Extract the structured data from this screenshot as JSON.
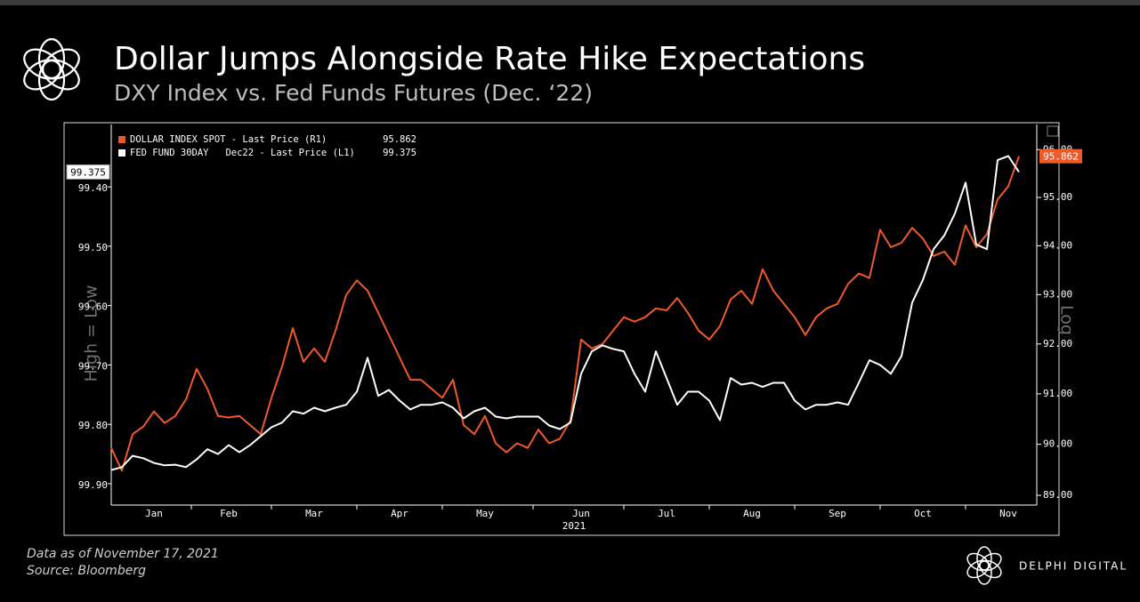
{
  "title": "Dollar Jumps Alongside Rate Hike Expectations",
  "subtitle": "DXY Index vs. Fed Funds Futures (Dec. ‘22)",
  "footer": {
    "note": "Data as of November 17, 2021",
    "source": "Source: Bloomberg",
    "brand": "DELPHI DIGITAL"
  },
  "chart_data": {
    "type": "line",
    "categories": [
      null,
      null,
      null,
      null,
      "Jan",
      null,
      null,
      null,
      null,
      null,
      null,
      "Feb",
      null,
      null,
      null,
      null,
      null,
      null,
      null,
      "Mar",
      null,
      null,
      null,
      null,
      null,
      null,
      null,
      "Apr",
      null,
      null,
      null,
      null,
      null,
      null,
      null,
      "May",
      null,
      null,
      null,
      null,
      null,
      null,
      null,
      null,
      "Jun",
      null,
      null,
      null,
      null,
      null,
      null,
      null,
      "Jul",
      null,
      null,
      null,
      null,
      null,
      null,
      null,
      "Aug",
      null,
      null,
      null,
      null,
      null,
      null,
      null,
      "Sep",
      null,
      null,
      null,
      null,
      null,
      null,
      null,
      "Oct",
      null,
      null,
      null,
      null,
      null,
      null,
      null,
      "Nov",
      null
    ],
    "xlabel": "2021",
    "ylabel": "High = Low",
    "y2label": "Log",
    "ylim": [
      99.936,
      99.295
    ],
    "yticks": [
      {
        "value": 99.4,
        "label": "99.40"
      },
      {
        "value": 99.5,
        "label": "99.50"
      },
      {
        "value": 99.6,
        "label": "99.60"
      },
      {
        "value": 99.7,
        "label": "99.70"
      },
      {
        "value": 99.8,
        "label": "99.80"
      },
      {
        "value": 99.9,
        "label": "99.90"
      }
    ],
    "y2lim": [
      88.81,
      96.53
    ],
    "y2_log": true,
    "y2ticks": [
      {
        "value": 89,
        "label": "89.00"
      },
      {
        "value": 90,
        "label": "90.00"
      },
      {
        "value": 91,
        "label": "91.00"
      },
      {
        "value": 92,
        "label": "92.00"
      },
      {
        "value": 93,
        "label": "93.00"
      },
      {
        "value": 94,
        "label": "94.00"
      },
      {
        "value": 95,
        "label": "95.00"
      },
      {
        "value": 96,
        "label": "96.00"
      }
    ],
    "legend": "top-left",
    "series": [
      {
        "name": "DOLLAR INDEX SPOT - Last Price (R1)",
        "color": "#ee5a2a",
        "axis": "y2",
        "values": [
          89.93,
          89.48,
          90.2,
          90.35,
          90.65,
          90.42,
          90.56,
          90.89,
          91.5,
          91.1,
          90.56,
          90.53,
          90.56,
          90.38,
          90.2,
          90.92,
          91.55,
          92.32,
          91.64,
          91.91,
          91.64,
          92.27,
          92.99,
          93.29,
          93.08,
          92.63,
          92.18,
          91.73,
          91.28,
          91.28,
          91.1,
          90.92,
          91.28,
          90.38,
          90.2,
          90.56,
          90.02,
          89.84,
          90.02,
          89.93,
          90.29,
          90.02,
          90.11,
          90.47,
          92.09,
          91.91,
          92.0,
          92.27,
          92.54,
          92.45,
          92.54,
          92.72,
          92.68,
          92.93,
          92.63,
          92.27,
          92.09,
          92.36,
          92.9,
          93.08,
          92.81,
          93.52,
          93.08,
          92.81,
          92.54,
          92.18,
          92.54,
          92.72,
          92.81,
          93.22,
          93.43,
          93.34,
          94.33,
          93.97,
          94.06,
          94.37,
          94.15,
          93.79,
          93.88,
          93.61,
          94.42,
          93.97,
          94.24,
          94.96,
          95.23,
          95.862
        ]
      },
      {
        "name": "FED FUND 30DAY   Dec22 - Last Price (L1)",
        "color": "#ffffff",
        "axis": "y",
        "values": [
          99.877,
          99.872,
          99.853,
          99.857,
          99.865,
          99.869,
          99.868,
          99.872,
          99.859,
          99.842,
          99.85,
          99.835,
          99.847,
          99.835,
          99.82,
          99.805,
          99.797,
          99.778,
          99.782,
          99.772,
          99.778,
          99.772,
          99.767,
          99.745,
          99.688,
          99.752,
          99.742,
          99.76,
          99.775,
          99.767,
          99.767,
          99.763,
          99.772,
          99.79,
          99.778,
          99.772,
          99.787,
          99.79,
          99.787,
          99.787,
          99.787,
          99.802,
          99.808,
          99.797,
          99.715,
          99.677,
          99.667,
          99.673,
          99.677,
          99.715,
          99.745,
          99.677,
          99.722,
          99.767,
          99.745,
          99.745,
          99.76,
          99.793,
          99.722,
          99.733,
          99.73,
          99.737,
          99.73,
          99.73,
          99.76,
          99.775,
          99.767,
          99.767,
          99.763,
          99.767,
          99.73,
          99.692,
          99.7,
          99.715,
          99.685,
          99.595,
          99.557,
          99.505,
          99.482,
          99.445,
          99.393,
          99.497,
          99.505,
          99.355,
          99.348,
          99.375
        ]
      }
    ]
  }
}
